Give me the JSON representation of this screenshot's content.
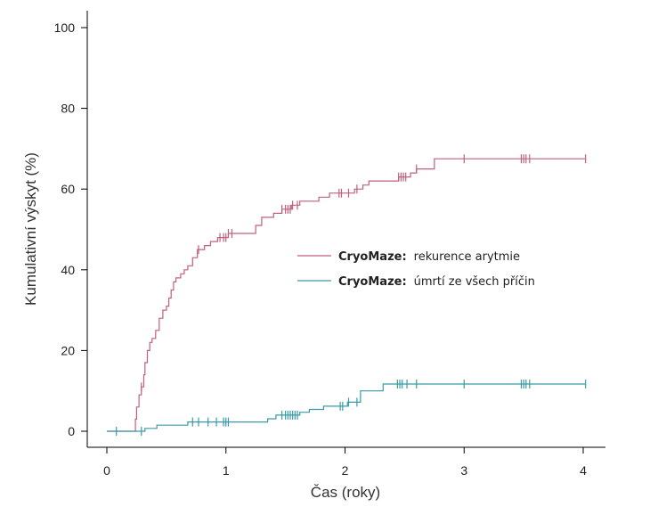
{
  "chart_data": {
    "type": "line",
    "xlabel": "Čas (roky)",
    "ylabel": "Kumulativní výskyt (%)",
    "xlim": [
      0,
      4
    ],
    "ylim": [
      0,
      100
    ],
    "x_ticks": [
      "0",
      "1",
      "2",
      "3",
      "4"
    ],
    "y_ticks": [
      "0",
      "20",
      "40",
      "60",
      "80",
      "100"
    ],
    "legend_position": "center-right",
    "grid": false,
    "series": [
      {
        "name_bold": "CryoMaze:",
        "name_rest": "rekurence arytmie",
        "color": "#c0607a",
        "steps": [
          [
            0,
            0
          ],
          [
            0.23,
            0
          ],
          [
            0.24,
            3
          ],
          [
            0.25,
            6
          ],
          [
            0.27,
            9
          ],
          [
            0.29,
            11
          ],
          [
            0.31,
            14
          ],
          [
            0.32,
            17
          ],
          [
            0.34,
            20
          ],
          [
            0.36,
            22
          ],
          [
            0.38,
            23
          ],
          [
            0.41,
            25
          ],
          [
            0.44,
            28
          ],
          [
            0.47,
            30
          ],
          [
            0.5,
            31
          ],
          [
            0.52,
            33
          ],
          [
            0.54,
            35
          ],
          [
            0.56,
            37
          ],
          [
            0.58,
            38
          ],
          [
            0.62,
            39
          ],
          [
            0.65,
            40
          ],
          [
            0.68,
            41
          ],
          [
            0.72,
            43
          ],
          [
            0.76,
            45
          ],
          [
            0.82,
            46
          ],
          [
            0.87,
            47
          ],
          [
            0.93,
            48
          ],
          [
            1.02,
            49
          ],
          [
            1.25,
            51
          ],
          [
            1.3,
            53
          ],
          [
            1.4,
            54
          ],
          [
            1.47,
            55
          ],
          [
            1.55,
            56
          ],
          [
            1.62,
            57
          ],
          [
            1.78,
            58
          ],
          [
            1.87,
            59
          ],
          [
            2.08,
            60
          ],
          [
            2.15,
            61
          ],
          [
            2.2,
            62
          ],
          [
            2.45,
            63
          ],
          [
            2.55,
            64
          ],
          [
            2.6,
            65
          ],
          [
            2.75,
            67.5
          ],
          [
            4.02,
            67.5
          ]
        ],
        "censored": [
          0.29,
          0.77,
          0.95,
          0.98,
          1.0,
          1.02,
          1.05,
          1.47,
          1.5,
          1.52,
          1.54,
          1.56,
          1.6,
          1.95,
          1.97,
          2.03,
          2.1,
          2.45,
          2.47,
          2.49,
          2.51,
          2.6,
          3.0,
          3.48,
          3.5,
          3.52,
          3.55,
          4.02
        ]
      },
      {
        "name_bold": "CryoMaze:",
        "name_rest": "úmrtí ze všech příčin",
        "color": "#3a9aa8",
        "steps": [
          [
            0,
            0
          ],
          [
            0.22,
            0
          ],
          [
            0.32,
            0.7
          ],
          [
            0.42,
            1.5
          ],
          [
            0.68,
            2.3
          ],
          [
            1.35,
            3.1
          ],
          [
            1.42,
            4.0
          ],
          [
            1.62,
            4.7
          ],
          [
            1.7,
            5.4
          ],
          [
            1.82,
            6.2
          ],
          [
            2.02,
            7.2
          ],
          [
            2.13,
            10.0
          ],
          [
            2.32,
            11.7
          ],
          [
            4.02,
            11.7
          ]
        ],
        "censored": [
          0.08,
          0.29,
          0.72,
          0.77,
          0.85,
          0.92,
          0.98,
          1.0,
          1.02,
          1.47,
          1.5,
          1.52,
          1.54,
          1.56,
          1.58,
          1.6,
          1.96,
          1.98,
          2.03,
          2.1,
          2.44,
          2.46,
          2.48,
          2.52,
          2.6,
          3.0,
          3.48,
          3.5,
          3.52,
          3.55,
          4.02
        ]
      }
    ]
  }
}
